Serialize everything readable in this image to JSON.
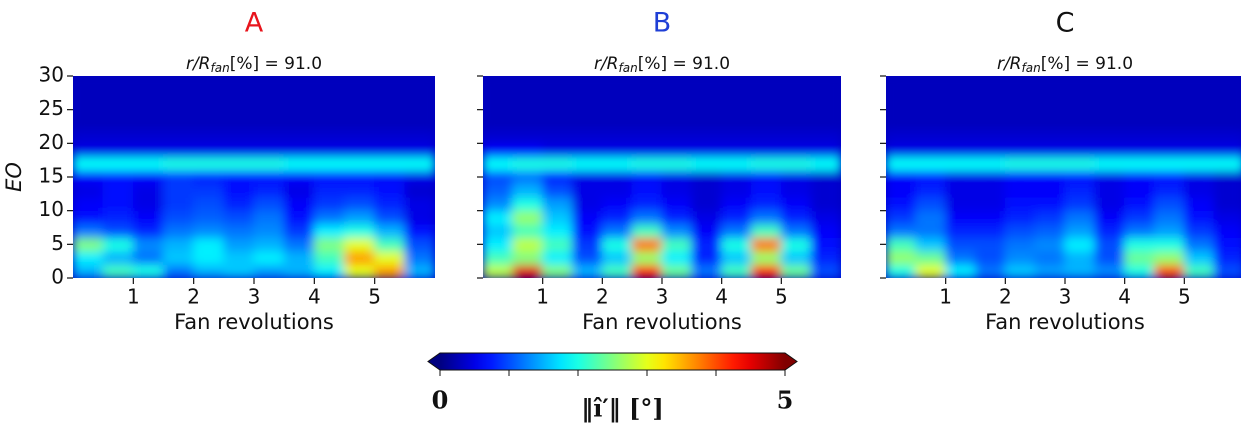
{
  "chart_data": [
    {
      "type": "heatmap",
      "title": "A",
      "title_color": "#e8141c",
      "subtitle": {
        "pre": "r/R",
        "sub": "fan",
        "post": "[%] = 91.0"
      },
      "xlabel": "Fan revolutions",
      "ylabel": "EO",
      "ytick_labels": true,
      "xlim": [
        0,
        6
      ],
      "ylim": [
        0,
        30
      ],
      "xticks": [
        1,
        2,
        3,
        4,
        5
      ],
      "yticks": [
        0,
        5,
        10,
        15,
        20,
        25,
        30
      ],
      "xbins": [
        0,
        0.5,
        1,
        1.5,
        2,
        2.5,
        3,
        3.5,
        4,
        4.5,
        5,
        5.5,
        6
      ],
      "ybins": [
        0,
        2,
        4,
        6,
        8,
        10,
        12,
        14,
        16,
        18,
        20,
        22,
        24,
        26,
        28,
        30
      ],
      "z": [
        [
          1.5,
          2.2,
          2.0,
          1.2,
          1.5,
          1.6,
          1.4,
          1.5,
          1.8,
          3.0,
          3.6,
          1.5
        ],
        [
          1.8,
          1.5,
          1.2,
          1.6,
          1.8,
          1.6,
          1.8,
          1.5,
          2.2,
          3.6,
          3.0,
          1.2
        ],
        [
          2.5,
          2.0,
          1.3,
          1.5,
          1.8,
          1.4,
          1.5,
          1.2,
          2.5,
          3.0,
          2.2,
          1.0
        ],
        [
          1.2,
          1.0,
          0.8,
          1.2,
          1.3,
          1.2,
          1.3,
          0.9,
          1.8,
          2.0,
          1.5,
          0.7
        ],
        [
          0.7,
          0.8,
          0.6,
          1.0,
          1.1,
          1.0,
          1.2,
          0.7,
          1.2,
          1.4,
          1.0,
          0.5
        ],
        [
          0.6,
          0.7,
          0.5,
          0.9,
          1.0,
          0.8,
          1.0,
          0.6,
          0.9,
          1.0,
          0.8,
          0.5
        ],
        [
          0.5,
          0.7,
          0.5,
          0.9,
          0.9,
          0.7,
          0.8,
          0.5,
          0.8,
          0.8,
          0.7,
          0.4
        ],
        [
          0.6,
          0.7,
          0.6,
          0.9,
          0.8,
          0.7,
          0.7,
          0.6,
          0.7,
          0.7,
          0.6,
          0.5
        ],
        [
          1.9,
          1.9,
          1.9,
          2.0,
          2.0,
          2.0,
          2.0,
          1.9,
          1.9,
          1.9,
          1.9,
          1.9
        ],
        [
          0.5,
          0.5,
          0.5,
          0.5,
          0.5,
          0.5,
          0.5,
          0.5,
          0.5,
          0.5,
          0.5,
          0.5
        ],
        [
          0.4,
          0.4,
          0.4,
          0.4,
          0.4,
          0.4,
          0.4,
          0.4,
          0.4,
          0.4,
          0.4,
          0.4
        ],
        [
          0.3,
          0.3,
          0.3,
          0.3,
          0.3,
          0.3,
          0.3,
          0.3,
          0.3,
          0.3,
          0.3,
          0.3
        ],
        [
          0.3,
          0.3,
          0.3,
          0.3,
          0.3,
          0.3,
          0.3,
          0.3,
          0.3,
          0.3,
          0.3,
          0.3
        ],
        [
          0.3,
          0.3,
          0.3,
          0.3,
          0.3,
          0.3,
          0.3,
          0.3,
          0.3,
          0.3,
          0.3,
          0.3
        ],
        [
          0.3,
          0.3,
          0.3,
          0.3,
          0.3,
          0.3,
          0.3,
          0.3,
          0.3,
          0.3,
          0.3,
          0.3
        ]
      ]
    },
    {
      "type": "heatmap",
      "title": "B",
      "title_color": "#1f3fd6",
      "subtitle": {
        "pre": "r/R",
        "sub": "fan",
        "post": "[%] = 91.0"
      },
      "xlabel": "Fan revolutions",
      "ytick_labels": false,
      "xlim": [
        0,
        6
      ],
      "ylim": [
        0,
        30
      ],
      "xticks": [
        1,
        2,
        3,
        4,
        5
      ],
      "yticks": [
        0,
        5,
        10,
        15,
        20,
        25,
        30
      ],
      "xbins": [
        0,
        0.5,
        1,
        1.5,
        2,
        2.5,
        3,
        3.5,
        4,
        4.5,
        5,
        5.5,
        6
      ],
      "ybins": [
        0,
        2,
        4,
        6,
        8,
        10,
        12,
        14,
        16,
        18,
        20,
        22,
        24,
        26,
        28,
        30
      ],
      "z": [
        [
          2.8,
          4.5,
          2.5,
          1.5,
          2.2,
          4.2,
          2.4,
          1.2,
          2.2,
          4.2,
          2.4,
          1.0
        ],
        [
          2.2,
          2.5,
          1.8,
          1.0,
          1.6,
          2.6,
          1.8,
          0.8,
          1.6,
          2.6,
          1.6,
          0.8
        ],
        [
          1.8,
          2.8,
          2.2,
          0.9,
          2.0,
          3.8,
          2.2,
          0.8,
          2.0,
          3.8,
          2.0,
          0.7
        ],
        [
          1.6,
          2.2,
          1.8,
          0.7,
          1.2,
          2.2,
          1.3,
          0.6,
          1.2,
          2.2,
          1.2,
          0.6
        ],
        [
          1.8,
          2.6,
          1.6,
          0.6,
          0.8,
          1.2,
          0.8,
          0.5,
          0.8,
          1.2,
          0.8,
          0.5
        ],
        [
          1.3,
          2.0,
          1.4,
          0.5,
          0.6,
          0.8,
          0.6,
          0.4,
          0.6,
          0.8,
          0.6,
          0.4
        ],
        [
          1.1,
          1.5,
          1.0,
          0.5,
          0.5,
          0.7,
          0.5,
          0.4,
          0.5,
          0.7,
          0.5,
          0.4
        ],
        [
          1.0,
          1.2,
          0.8,
          0.5,
          0.5,
          0.6,
          0.5,
          0.4,
          0.5,
          0.6,
          0.5,
          0.4
        ],
        [
          1.9,
          2.0,
          2.0,
          1.9,
          1.9,
          2.0,
          2.0,
          1.9,
          1.9,
          2.0,
          2.0,
          1.9
        ],
        [
          0.6,
          0.6,
          0.5,
          0.5,
          0.5,
          0.5,
          0.5,
          0.5,
          0.5,
          0.5,
          0.5,
          0.5
        ],
        [
          0.4,
          0.4,
          0.4,
          0.4,
          0.4,
          0.4,
          0.4,
          0.4,
          0.4,
          0.4,
          0.4,
          0.4
        ],
        [
          0.3,
          0.3,
          0.3,
          0.3,
          0.3,
          0.3,
          0.3,
          0.3,
          0.3,
          0.3,
          0.3,
          0.3
        ],
        [
          0.3,
          0.3,
          0.3,
          0.3,
          0.3,
          0.3,
          0.3,
          0.3,
          0.3,
          0.3,
          0.3,
          0.3
        ],
        [
          0.3,
          0.3,
          0.3,
          0.3,
          0.3,
          0.3,
          0.3,
          0.3,
          0.3,
          0.3,
          0.3,
          0.3
        ],
        [
          0.3,
          0.3,
          0.3,
          0.3,
          0.3,
          0.3,
          0.3,
          0.3,
          0.3,
          0.3,
          0.3,
          0.3
        ]
      ]
    },
    {
      "type": "heatmap",
      "title": "C",
      "title_color": "#111111",
      "subtitle": {
        "pre": "r/R",
        "sub": "fan",
        "post": "[%] = 91.0"
      },
      "xlabel": "Fan revolutions",
      "ytick_labels": false,
      "xlim": [
        0,
        6
      ],
      "ylim": [
        0,
        30
      ],
      "xticks": [
        1,
        2,
        3,
        4,
        5
      ],
      "yticks": [
        0,
        5,
        10,
        15,
        20,
        25,
        30
      ],
      "xbins": [
        0,
        0.5,
        1,
        1.5,
        2,
        2.5,
        3,
        3.5,
        4,
        4.5,
        5,
        5.5,
        6
      ],
      "ybins": [
        0,
        2,
        4,
        6,
        8,
        10,
        12,
        14,
        16,
        18,
        20,
        22,
        24,
        26,
        28,
        30
      ],
      "z": [
        [
          2.0,
          3.0,
          1.8,
          1.2,
          1.6,
          1.4,
          1.5,
          1.3,
          2.0,
          4.0,
          2.2,
          1.0
        ],
        [
          2.6,
          2.4,
          1.2,
          1.0,
          1.3,
          1.2,
          1.5,
          1.0,
          2.4,
          2.6,
          1.6,
          0.8
        ],
        [
          2.2,
          1.6,
          1.0,
          1.0,
          1.2,
          1.3,
          1.8,
          1.0,
          2.0,
          2.0,
          1.2,
          0.7
        ],
        [
          1.2,
          1.2,
          0.8,
          0.8,
          1.0,
          1.1,
          1.4,
          0.8,
          1.2,
          1.4,
          0.9,
          0.6
        ],
        [
          0.9,
          1.2,
          0.6,
          0.6,
          0.8,
          0.9,
          1.2,
          0.6,
          0.9,
          1.2,
          0.7,
          0.5
        ],
        [
          0.7,
          1.0,
          0.5,
          0.5,
          0.7,
          0.7,
          0.9,
          0.5,
          0.7,
          1.0,
          0.6,
          0.4
        ],
        [
          0.6,
          0.8,
          0.5,
          0.5,
          0.6,
          0.6,
          0.8,
          0.5,
          0.6,
          0.8,
          0.5,
          0.4
        ],
        [
          0.6,
          0.7,
          0.5,
          0.5,
          0.6,
          0.6,
          0.7,
          0.5,
          0.6,
          0.7,
          0.5,
          0.4
        ],
        [
          1.9,
          1.9,
          1.9,
          1.9,
          2.0,
          2.0,
          2.0,
          1.9,
          1.9,
          1.9,
          1.9,
          1.9
        ],
        [
          0.5,
          0.5,
          0.5,
          0.5,
          0.5,
          0.5,
          0.5,
          0.5,
          0.5,
          0.5,
          0.5,
          0.5
        ],
        [
          0.4,
          0.4,
          0.4,
          0.4,
          0.4,
          0.4,
          0.4,
          0.4,
          0.4,
          0.4,
          0.4,
          0.4
        ],
        [
          0.3,
          0.3,
          0.3,
          0.3,
          0.3,
          0.3,
          0.3,
          0.3,
          0.3,
          0.3,
          0.3,
          0.3
        ],
        [
          0.3,
          0.3,
          0.3,
          0.3,
          0.3,
          0.3,
          0.3,
          0.3,
          0.3,
          0.3,
          0.3,
          0.3
        ],
        [
          0.3,
          0.3,
          0.3,
          0.3,
          0.3,
          0.3,
          0.3,
          0.3,
          0.3,
          0.3,
          0.3,
          0.3
        ],
        [
          0.3,
          0.3,
          0.3,
          0.3,
          0.3,
          0.3,
          0.3,
          0.3,
          0.3,
          0.3,
          0.3,
          0.3
        ]
      ]
    }
  ],
  "colorbar": {
    "colormap": "jet",
    "clim": [
      0,
      5
    ],
    "cticks": [
      0,
      5
    ],
    "minor_ticks": [
      1,
      2,
      3,
      4
    ],
    "label": "‖î′‖ [°]"
  }
}
